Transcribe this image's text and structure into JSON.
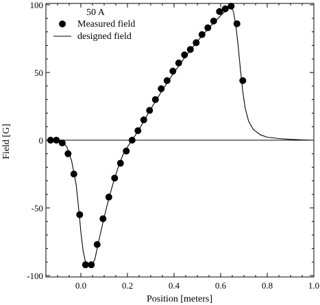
{
  "chart_data": {
    "type": "scatter",
    "title": "",
    "xlabel": "Position [meters]",
    "ylabel": "Field [G]",
    "xlim": [
      -0.15,
      1.0
    ],
    "ylim": [
      -101,
      101
    ],
    "x_ticks": [
      0.0,
      0.2,
      0.4,
      0.6,
      0.8,
      1.0
    ],
    "x_tick_labels": [
      "0.0",
      "0.2",
      "0.4",
      "0.6",
      "0.8",
      "1.0"
    ],
    "y_ticks": [
      -100,
      -50,
      0,
      50,
      100
    ],
    "y_tick_labels": [
      "-100",
      "-50",
      "0",
      "50",
      "100"
    ],
    "grid": false,
    "zero_line": true,
    "legend_position": "top-left",
    "annotation": "50 A",
    "series": [
      {
        "name": "Measured field",
        "style": "markers",
        "color": "#000000",
        "points": [
          [
            -0.13,
            0
          ],
          [
            -0.105,
            0
          ],
          [
            -0.08,
            -2
          ],
          [
            -0.055,
            -10
          ],
          [
            -0.03,
            -25
          ],
          [
            -0.005,
            -55
          ],
          [
            0.02,
            -92
          ],
          [
            0.045,
            -92
          ],
          [
            0.07,
            -77
          ],
          [
            0.095,
            -58
          ],
          [
            0.12,
            -42
          ],
          [
            0.145,
            -28
          ],
          [
            0.17,
            -17
          ],
          [
            0.195,
            -8
          ],
          [
            0.22,
            0
          ],
          [
            0.245,
            7
          ],
          [
            0.27,
            15
          ],
          [
            0.295,
            22
          ],
          [
            0.32,
            30
          ],
          [
            0.345,
            38
          ],
          [
            0.37,
            44
          ],
          [
            0.395,
            51
          ],
          [
            0.42,
            57
          ],
          [
            0.445,
            63
          ],
          [
            0.47,
            67
          ],
          [
            0.495,
            72
          ],
          [
            0.52,
            78
          ],
          [
            0.545,
            83
          ],
          [
            0.57,
            88
          ],
          [
            0.595,
            95
          ],
          [
            0.62,
            97
          ],
          [
            0.645,
            99
          ],
          [
            0.67,
            86
          ],
          [
            0.695,
            44
          ]
        ]
      },
      {
        "name": "designed field",
        "style": "line",
        "color": "#000000",
        "points": [
          [
            -0.1,
            0
          ],
          [
            -0.08,
            -1
          ],
          [
            -0.06,
            -5
          ],
          [
            -0.04,
            -15
          ],
          [
            -0.02,
            -33
          ],
          [
            -0.005,
            -58
          ],
          [
            0.0,
            -68
          ],
          [
            0.01,
            -82
          ],
          [
            0.02,
            -90
          ],
          [
            0.03,
            -93
          ],
          [
            0.045,
            -93
          ],
          [
            0.06,
            -88
          ],
          [
            0.08,
            -72
          ],
          [
            0.1,
            -57
          ],
          [
            0.12,
            -43
          ],
          [
            0.14,
            -31
          ],
          [
            0.16,
            -20
          ],
          [
            0.18,
            -11
          ],
          [
            0.2,
            -5
          ],
          [
            0.22,
            0
          ],
          [
            0.25,
            8
          ],
          [
            0.3,
            23
          ],
          [
            0.35,
            37
          ],
          [
            0.4,
            50
          ],
          [
            0.45,
            62
          ],
          [
            0.5,
            73
          ],
          [
            0.55,
            83
          ],
          [
            0.6,
            92
          ],
          [
            0.63,
            97
          ],
          [
            0.645,
            98
          ],
          [
            0.655,
            95
          ],
          [
            0.665,
            85
          ],
          [
            0.675,
            70
          ],
          [
            0.685,
            52
          ],
          [
            0.695,
            36
          ],
          [
            0.705,
            24
          ],
          [
            0.72,
            14
          ],
          [
            0.74,
            8
          ],
          [
            0.77,
            4
          ],
          [
            0.8,
            2.2
          ],
          [
            0.85,
            1.2
          ],
          [
            0.9,
            0.6
          ],
          [
            0.95,
            0.2
          ],
          [
            1.0,
            0
          ]
        ]
      }
    ]
  }
}
